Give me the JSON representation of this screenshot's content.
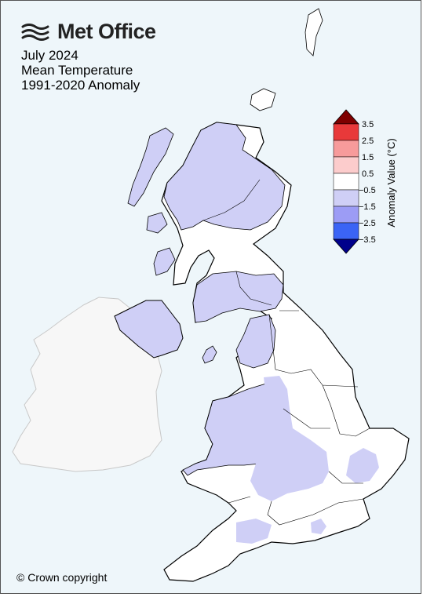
{
  "header": {
    "logo_text": "Met Office",
    "title_lines": [
      "July 2024",
      "Mean Temperature",
      "1991-2020 Anomaly"
    ]
  },
  "footer": {
    "copyright": "© Crown copyright"
  },
  "colorbar": {
    "label": "Anomaly Value (°C)",
    "ticks": [
      "3.5",
      "2.5",
      "1.5",
      "0.5",
      "−0.5",
      "−1.5",
      "−2.5",
      "−3.5"
    ],
    "colors": {
      "above_3_5": "#7f0000",
      "2_5_to_3_5": "#e8393a",
      "1_5_to_2_5": "#f79b9b",
      "0_5_to_1_5": "#fccccc",
      "neutral": "#ffffff",
      "minus_1_5_to_minus_0_5": "#cfcff6",
      "minus_2_5_to_minus_1_5": "#9c9cf5",
      "minus_3_5_to_minus_2_5": "#3b64f5",
      "below_minus_3_5": "#00008b"
    }
  },
  "map": {
    "sea_color": "#eef6fa",
    "neighbour_land_color": "#f7f7f7",
    "region_colors": {
      "cool_anomaly": "#cfcff6",
      "near_normal": "#ffffff"
    }
  }
}
